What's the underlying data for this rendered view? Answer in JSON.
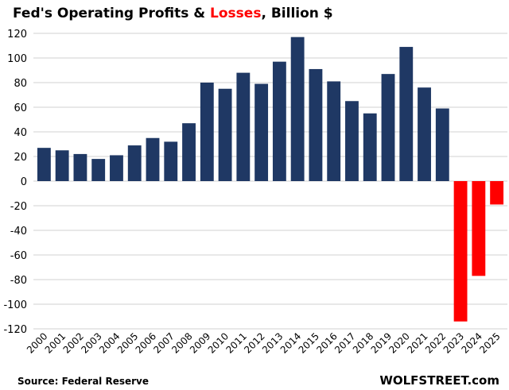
{
  "chart_data": {
    "type": "bar",
    "title_parts": [
      "Fed's Operating Profits & ",
      "Losses",
      ", Billion $"
    ],
    "xlabel": "",
    "ylabel": "",
    "ylim": [
      -120,
      120
    ],
    "yticks": [
      120,
      100,
      80,
      60,
      40,
      20,
      0,
      -20,
      -40,
      -60,
      -80,
      -100,
      -120
    ],
    "grid": true,
    "categories": [
      "2000",
      "2001",
      "2002",
      "2003",
      "2004",
      "2005",
      "2006",
      "2007",
      "2008",
      "2009",
      "2010",
      "2011",
      "2012",
      "2013",
      "2014",
      "2015",
      "2016",
      "2017",
      "2018",
      "2019",
      "2020",
      "2021",
      "2022",
      "2023",
      "2024",
      "2025"
    ],
    "values": [
      27,
      25,
      22,
      18,
      21,
      29,
      35,
      32,
      47,
      80,
      75,
      88,
      79,
      97,
      117,
      91,
      81,
      65,
      55,
      87,
      109,
      76,
      59,
      -114,
      -77,
      -19
    ],
    "colors": {
      "profit": "#1f3864",
      "loss": "#ff0000",
      "title_loss": "#ff0000",
      "grid": "#d9d9d9"
    }
  },
  "footer": {
    "source": "Source: Federal Reserve",
    "brand": "WOLFSTREET.com"
  }
}
